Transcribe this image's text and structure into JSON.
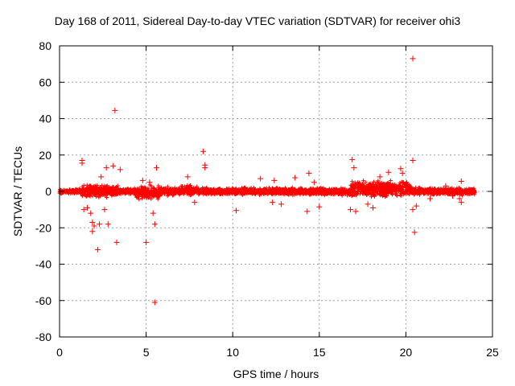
{
  "chart_data": {
    "type": "scatter",
    "title": "Day 168 of 2011, Sidereal Day-to-day VTEC variation (SDTVAR) for receiver ohi3",
    "xlabel": "GPS time / hours",
    "ylabel": "SDTVAR / TECUs",
    "xlim": [
      0,
      25
    ],
    "ylim": [
      -80,
      80
    ],
    "xticks": [
      0,
      5,
      10,
      15,
      20,
      25
    ],
    "yticks": [
      -80,
      -60,
      -40,
      -20,
      0,
      20,
      40,
      60,
      80
    ],
    "grid": true,
    "marker": "+",
    "color": "#ff0000",
    "dense_band": {
      "description": "dense cluster of points near zero across 0-24 h",
      "segments": [
        {
          "x": [
            0.0,
            1.3
          ],
          "y": [
            -1.5,
            1.5
          ]
        },
        {
          "x": [
            1.3,
            3.4
          ],
          "y": [
            -4,
            4
          ]
        },
        {
          "x": [
            3.4,
            4.3
          ],
          "y": [
            -2,
            2
          ]
        },
        {
          "x": [
            4.3,
            5.8
          ],
          "y": [
            -5,
            4
          ]
        },
        {
          "x": [
            5.8,
            7.0
          ],
          "y": [
            -3,
            3
          ]
        },
        {
          "x": [
            7.0,
            8.0
          ],
          "y": [
            -3,
            4
          ]
        },
        {
          "x": [
            8.0,
            16.8
          ],
          "y": [
            -2.5,
            2.5
          ]
        },
        {
          "x": [
            16.8,
            20.3
          ],
          "y": [
            -4,
            7
          ]
        },
        {
          "x": [
            20.3,
            24.0
          ],
          "y": [
            -2.5,
            2.5
          ]
        }
      ]
    },
    "outliers": [
      {
        "x": 1.3,
        "y": 17
      },
      {
        "x": 1.3,
        "y": 15.5
      },
      {
        "x": 1.4,
        "y": -10
      },
      {
        "x": 1.6,
        "y": -9
      },
      {
        "x": 1.8,
        "y": -12
      },
      {
        "x": 1.9,
        "y": -17
      },
      {
        "x": 1.9,
        "y": -22
      },
      {
        "x": 2.0,
        "y": -19
      },
      {
        "x": 2.2,
        "y": -32
      },
      {
        "x": 2.3,
        "y": -18
      },
      {
        "x": 2.4,
        "y": 8
      },
      {
        "x": 2.6,
        "y": -10
      },
      {
        "x": 2.7,
        "y": 13
      },
      {
        "x": 2.8,
        "y": -18
      },
      {
        "x": 3.1,
        "y": 14
      },
      {
        "x": 3.2,
        "y": 44.5
      },
      {
        "x": 3.3,
        "y": -28
      },
      {
        "x": 3.5,
        "y": 12
      },
      {
        "x": 4.8,
        "y": 6
      },
      {
        "x": 5.0,
        "y": -28
      },
      {
        "x": 5.2,
        "y": 5
      },
      {
        "x": 5.5,
        "y": -61
      },
      {
        "x": 5.6,
        "y": 13
      },
      {
        "x": 5.4,
        "y": -12
      },
      {
        "x": 5.5,
        "y": -18
      },
      {
        "x": 7.4,
        "y": 8
      },
      {
        "x": 7.8,
        "y": -6
      },
      {
        "x": 8.3,
        "y": 22
      },
      {
        "x": 8.4,
        "y": 13
      },
      {
        "x": 8.4,
        "y": 14.5
      },
      {
        "x": 10.2,
        "y": -10.5
      },
      {
        "x": 11.6,
        "y": 7
      },
      {
        "x": 12.3,
        "y": -6
      },
      {
        "x": 12.4,
        "y": 6
      },
      {
        "x": 12.8,
        "y": -7
      },
      {
        "x": 13.6,
        "y": 7.5
      },
      {
        "x": 14.4,
        "y": 10
      },
      {
        "x": 14.7,
        "y": 5
      },
      {
        "x": 14.3,
        "y": -11
      },
      {
        "x": 15.0,
        "y": -8.5
      },
      {
        "x": 16.9,
        "y": 17.5
      },
      {
        "x": 17.0,
        "y": 13
      },
      {
        "x": 16.8,
        "y": -10
      },
      {
        "x": 17.1,
        "y": -11
      },
      {
        "x": 17.8,
        "y": -7
      },
      {
        "x": 18.1,
        "y": -9
      },
      {
        "x": 18.5,
        "y": 8
      },
      {
        "x": 19.0,
        "y": 10.5
      },
      {
        "x": 19.7,
        "y": 12.5
      },
      {
        "x": 19.8,
        "y": 10
      },
      {
        "x": 20.4,
        "y": 73
      },
      {
        "x": 20.4,
        "y": 17
      },
      {
        "x": 20.5,
        "y": -22.5
      },
      {
        "x": 20.4,
        "y": -10
      },
      {
        "x": 20.6,
        "y": -8
      },
      {
        "x": 21.4,
        "y": -4
      },
      {
        "x": 22.3,
        "y": 3
      },
      {
        "x": 22.7,
        "y": -2.5
      },
      {
        "x": 23.2,
        "y": 5.5
      },
      {
        "x": 23.2,
        "y": -6
      },
      {
        "x": 23.1,
        "y": -4
      }
    ]
  }
}
